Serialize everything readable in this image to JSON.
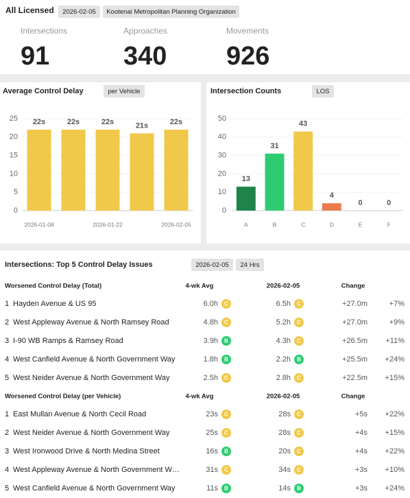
{
  "header": {
    "title": "All Licensed",
    "chips": [
      "2026-02-05",
      "Kootenai Metropolitan Planning Organization"
    ]
  },
  "stats": [
    {
      "label": "Intersections",
      "value": 91
    },
    {
      "label": "Approaches",
      "value": 340
    },
    {
      "label": "Movements",
      "value": 926
    }
  ],
  "chart_data": [
    {
      "type": "bar",
      "title": "Average Control Delay",
      "subtitle": "per Vehicle",
      "categories": [
        "2026-01-08",
        null,
        "2026-01-22",
        null,
        "2026-02-05"
      ],
      "values": [
        22,
        22,
        22,
        21,
        22
      ],
      "value_labels": [
        "22s",
        "22s",
        "22s",
        "21s",
        "22s"
      ],
      "color": "#f0c94a",
      "ylim": [
        0,
        25
      ],
      "yticks": [
        0,
        5,
        10,
        15,
        20,
        25
      ],
      "grid": true
    },
    {
      "type": "bar",
      "title": "Intersection Counts",
      "subtitle": "LOS",
      "categories": [
        "A",
        "B",
        "C",
        "D",
        "E",
        "F"
      ],
      "values": [
        13,
        31,
        43,
        4,
        0,
        0
      ],
      "colors": [
        "#1e8449",
        "#2ecc71",
        "#f0c94a",
        "#ec7b4b",
        "#e74c3c",
        "#c0392b"
      ],
      "ylim": [
        0,
        50
      ],
      "yticks": [
        0,
        10,
        20,
        30,
        40,
        50
      ],
      "grid": true
    }
  ],
  "table": {
    "title": "Intersections: Top 5 Control Delay Issues",
    "chips": [
      "2026-02-05",
      "24 Hrs"
    ],
    "sections": [
      {
        "title": "Worsened Control Delay (Total)",
        "columns": [
          "4-wk Avg",
          "2026-02-05",
          "Change"
        ],
        "rows": [
          [
            "1",
            "Hayden Avenue & US 95",
            "6.0h",
            "C",
            "6.5h",
            "C",
            "+27.0m",
            "+7%"
          ],
          [
            "2",
            "West Appleway Avenue & North Ramsey Road",
            "4.8h",
            "C",
            "5.2h",
            "C",
            "+27.0m",
            "+9%"
          ],
          [
            "3",
            "I-90 WB Ramps & Ramsey Road",
            "3.9h",
            "B",
            "4.3h",
            "C",
            "+26.5m",
            "+11%"
          ],
          [
            "4",
            "West Canfield Avenue & North Government Way",
            "1.8h",
            "B",
            "2.2h",
            "B",
            "+25.5m",
            "+24%"
          ],
          [
            "5",
            "West Neider Avenue & North Government Way",
            "2.5h",
            "C",
            "2.8h",
            "C",
            "+22.5m",
            "+15%"
          ]
        ]
      },
      {
        "title": "Worsened Control Delay (per Vehicle)",
        "columns": [
          "4-wk Avg",
          "2026-02-05",
          "Change"
        ],
        "rows": [
          [
            "1",
            "East Mullan Avenue & North Cecil Road",
            "23s",
            "C",
            "28s",
            "C",
            "+5s",
            "+22%"
          ],
          [
            "2",
            "West Neider Avenue & North Government Way",
            "25s",
            "C",
            "28s",
            "C",
            "+4s",
            "+15%"
          ],
          [
            "3",
            "West Ironwood Drive & North Medina Street",
            "16s",
            "B",
            "20s",
            "C",
            "+4s",
            "+22%"
          ],
          [
            "4",
            "West Appleway Avenue & North Government W…",
            "31s",
            "C",
            "34s",
            "C",
            "+3s",
            "+10%"
          ],
          [
            "5",
            "West Canfield Avenue & North Government Way",
            "11s",
            "B",
            "14s",
            "B",
            "+3s",
            "+24%"
          ]
        ]
      }
    ]
  }
}
